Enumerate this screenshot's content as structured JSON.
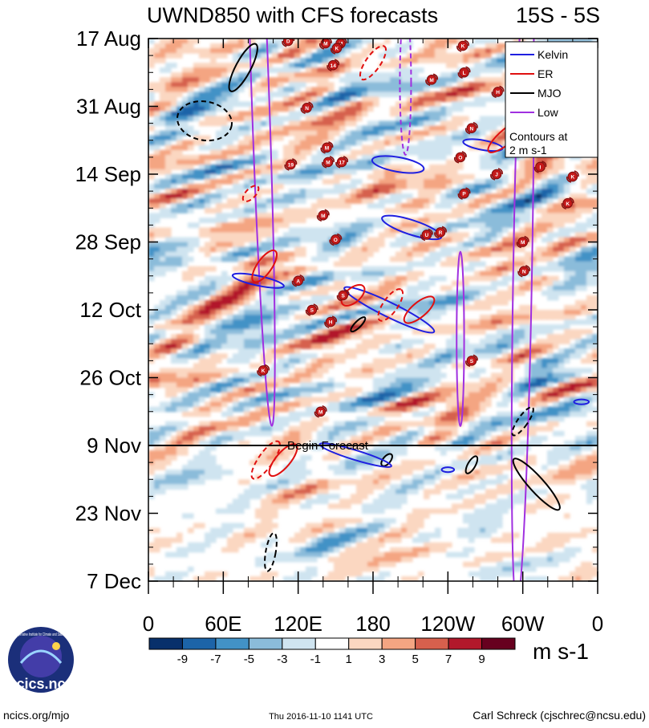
{
  "chart_data": {
    "type": "heatmap",
    "title": "UWND850 with CFS forecasts",
    "subtitle": "15S - 5S",
    "x_ticks": [
      "0",
      "60E",
      "120E",
      "180",
      "120W",
      "60W",
      "0"
    ],
    "x_range_deg_east": [
      0,
      360
    ],
    "y_ticks": [
      "17 Aug",
      "31 Aug",
      "14 Sep",
      "28 Sep",
      "12 Oct",
      "26 Oct",
      "9 Nov",
      "23 Nov",
      "7 Dec"
    ],
    "y_range_days_since_17_Aug": [
      0,
      112
    ],
    "forecast_start_day": 84,
    "forecast_label": "Begin Forecast",
    "colorbar": {
      "label": "m s-1",
      "levels": [
        "-9",
        "-7",
        "-5",
        "-3",
        "-1",
        "1",
        "3",
        "5",
        "7",
        "9"
      ],
      "colors": [
        "#08306b",
        "#1c64a8",
        "#4292c6",
        "#8bbcda",
        "#cfe4f0",
        "#ffffff",
        "#fbd7c1",
        "#f4a582",
        "#d6604d",
        "#b2182b",
        "#67001f"
      ]
    },
    "legend": {
      "position": "top-right",
      "entries": [
        {
          "name": "Kelvin",
          "color": "#1f1fe0"
        },
        {
          "name": "ER",
          "color": "#e01010"
        },
        {
          "name": "MJO",
          "color": "#000000"
        },
        {
          "name": "Low",
          "color": "#a030e0"
        }
      ],
      "note_line1": "Contours at",
      "note_line2": "2 m s-1"
    },
    "contours": [
      {
        "type": "Low",
        "style": "solid",
        "lon": 90,
        "day": 14,
        "len_days": 132,
        "width_deg": 14,
        "tilt": -2
      },
      {
        "type": "Low",
        "style": "solid",
        "lon": 300,
        "day": 46,
        "len_days": 142,
        "width_deg": 15,
        "tilt": 1
      },
      {
        "type": "Low",
        "style": "solid",
        "lon": 250,
        "day": 62,
        "len_days": 36,
        "width_deg": 6,
        "tilt": 0
      },
      {
        "type": "Low",
        "style": "dashed",
        "lon": 206,
        "day": 9,
        "len_days": 30,
        "width_deg": 9,
        "tilt": 0
      },
      {
        "type": "MJO",
        "style": "solid",
        "lon": 76,
        "day": 6,
        "len_days": 11,
        "width_deg": 12,
        "tilt": 28
      },
      {
        "type": "MJO",
        "style": "dashed",
        "lon": 45,
        "day": 17,
        "len_days": 8,
        "width_deg": 44,
        "tilt": 10
      },
      {
        "type": "MJO",
        "style": "solid",
        "lon": 168,
        "day": 59,
        "len_days": 4,
        "width_deg": 5,
        "tilt": 45
      },
      {
        "type": "MJO",
        "style": "dashed",
        "lon": 300,
        "day": 79,
        "len_days": 7,
        "width_deg": 8,
        "tilt": 35
      },
      {
        "type": "MJO",
        "style": "solid",
        "lon": 191,
        "day": 87,
        "len_days": 3,
        "width_deg": 6,
        "tilt": 40
      },
      {
        "type": "MJO",
        "style": "solid",
        "lon": 259,
        "day": 88,
        "len_days": 4,
        "width_deg": 6,
        "tilt": 30
      },
      {
        "type": "MJO",
        "style": "solid",
        "lon": 311,
        "day": 92,
        "len_days": 14,
        "width_deg": 12,
        "tilt": -42
      },
      {
        "type": "MJO",
        "style": "dashed",
        "lon": 98,
        "day": 106,
        "len_days": 8,
        "width_deg": 8,
        "tilt": 10
      },
      {
        "type": "Kelvin",
        "style": "solid",
        "lon": 200,
        "day": 26,
        "len_days": 3,
        "width_deg": 42,
        "tilt": 10
      },
      {
        "type": "Kelvin",
        "style": "solid",
        "lon": 211,
        "day": 39,
        "len_days": 3,
        "width_deg": 50,
        "tilt": 18
      },
      {
        "type": "Kelvin",
        "style": "solid",
        "lon": 268,
        "day": 22,
        "len_days": 2,
        "width_deg": 32,
        "tilt": 10
      },
      {
        "type": "Kelvin",
        "style": "solid",
        "lon": 88,
        "day": 50,
        "len_days": 2,
        "width_deg": 42,
        "tilt": 12
      },
      {
        "type": "Kelvin",
        "style": "solid",
        "lon": 193,
        "day": 56,
        "len_days": 3,
        "width_deg": 80,
        "tilt": 26
      },
      {
        "type": "Kelvin",
        "style": "solid",
        "lon": 166,
        "day": 86,
        "len_days": 2,
        "width_deg": 60,
        "tilt": 17
      },
      {
        "type": "Kelvin",
        "style": "solid",
        "lon": 240,
        "day": 89,
        "len_days": 1,
        "width_deg": 10,
        "tilt": 0
      },
      {
        "type": "Kelvin",
        "style": "solid",
        "lon": 347,
        "day": 75,
        "len_days": 1,
        "width_deg": 12,
        "tilt": 0
      },
      {
        "type": "ER",
        "style": "solid",
        "lon": 93,
        "day": 47,
        "len_days": 3,
        "width_deg": 30,
        "tilt": -55
      },
      {
        "type": "ER",
        "style": "solid",
        "lon": 288,
        "day": 20,
        "len_days": 3,
        "width_deg": 40,
        "tilt": -40
      },
      {
        "type": "ER",
        "style": "solid",
        "lon": 217,
        "day": 56,
        "len_days": 3,
        "width_deg": 30,
        "tilt": -40
      },
      {
        "type": "ER",
        "style": "solid",
        "lon": 164,
        "day": 53,
        "len_days": 3,
        "width_deg": 22,
        "tilt": -40
      },
      {
        "type": "ER",
        "style": "solid",
        "lon": 108,
        "day": 87,
        "len_days": 3,
        "width_deg": 32,
        "tilt": -50
      },
      {
        "type": "ER",
        "style": "dashed",
        "lon": 180,
        "day": 5,
        "len_days": 3,
        "width_deg": 32,
        "tilt": -55
      },
      {
        "type": "ER",
        "style": "dashed",
        "lon": 194,
        "day": 55,
        "len_days": 3,
        "width_deg": 30,
        "tilt": -55
      },
      {
        "type": "ER",
        "style": "dashed",
        "lon": 82,
        "day": 32,
        "len_days": 2,
        "width_deg": 16,
        "tilt": -45
      },
      {
        "type": "ER",
        "style": "dashed",
        "lon": 94,
        "day": 87,
        "len_days": 3,
        "width_deg": 36,
        "tilt": -55
      }
    ],
    "storm_markers": [
      {
        "label": "D",
        "lon": 112,
        "day": 0.5
      },
      {
        "label": "M",
        "lon": 142,
        "day": 1
      },
      {
        "label": "M",
        "lon": 154,
        "day": 1
      },
      {
        "label": "K",
        "lon": 151,
        "day": 2
      },
      {
        "label": "14",
        "lon": 148,
        "day": 5.5
      },
      {
        "label": "K",
        "lon": 252,
        "day": 1.5
      },
      {
        "label": "L",
        "lon": 253,
        "day": 7
      },
      {
        "label": "M",
        "lon": 227,
        "day": 8.5
      },
      {
        "label": "H",
        "lon": 280,
        "day": 11
      },
      {
        "label": "N",
        "lon": 127,
        "day": 14.3
      },
      {
        "label": "N",
        "lon": 259,
        "day": 18.5
      },
      {
        "label": "M",
        "lon": 143,
        "day": 22.5
      },
      {
        "label": "O",
        "lon": 250,
        "day": 24.5
      },
      {
        "label": "M",
        "lon": 144,
        "day": 25.5
      },
      {
        "label": "17",
        "lon": 155,
        "day": 25.5
      },
      {
        "label": "19",
        "lon": 114,
        "day": 26
      },
      {
        "label": "I",
        "lon": 314,
        "day": 26.5
      },
      {
        "label": "J",
        "lon": 279,
        "day": 28
      },
      {
        "label": "K",
        "lon": 340,
        "day": 28.5
      },
      {
        "label": "P",
        "lon": 253,
        "day": 32
      },
      {
        "label": "K",
        "lon": 336,
        "day": 34
      },
      {
        "label": "M",
        "lon": 140,
        "day": 36.5
      },
      {
        "label": "R",
        "lon": 234,
        "day": 40
      },
      {
        "label": "U",
        "lon": 223,
        "day": 40.5
      },
      {
        "label": "O",
        "lon": 150,
        "day": 41.5
      },
      {
        "label": "M",
        "lon": 300,
        "day": 42
      },
      {
        "label": "N",
        "lon": 301,
        "day": 48
      },
      {
        "label": "A",
        "lon": 120,
        "day": 50
      },
      {
        "label": "S",
        "lon": 156,
        "day": 53
      },
      {
        "label": "S",
        "lon": 131,
        "day": 56
      },
      {
        "label": "H",
        "lon": 146,
        "day": 58.5
      },
      {
        "label": "S",
        "lon": 259,
        "day": 66.5
      },
      {
        "label": "K",
        "lon": 92,
        "day": 68.5
      },
      {
        "label": "M",
        "lon": 138,
        "day": 77
      }
    ]
  },
  "footer": {
    "left": "ncics.org/mjo",
    "center": "Thu 2016-11-10 1141 UTC",
    "right": "Carl Schreck (cjschrec@ncsu.edu)",
    "logo_text": "cics.nc",
    "logo_ring_text": "Cooperative Institute for Climate and Satellites"
  }
}
